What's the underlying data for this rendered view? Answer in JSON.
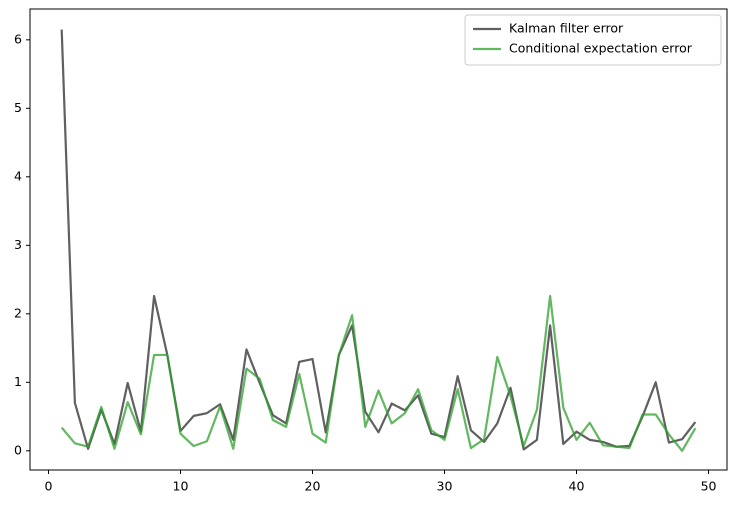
{
  "chart_data": {
    "type": "line",
    "x": [
      1,
      2,
      3,
      4,
      5,
      6,
      7,
      8,
      9,
      10,
      11,
      12,
      13,
      14,
      15,
      16,
      17,
      18,
      19,
      20,
      21,
      22,
      23,
      24,
      25,
      26,
      27,
      28,
      29,
      30,
      31,
      32,
      33,
      34,
      35,
      36,
      37,
      38,
      39,
      40,
      41,
      42,
      43,
      44,
      45,
      46,
      47,
      48,
      49
    ],
    "series": [
      {
        "name": "Kalman filter error",
        "color": "#2b2b2b",
        "values": [
          6.15,
          0.7,
          0.03,
          0.6,
          0.1,
          0.99,
          0.28,
          2.26,
          1.4,
          0.29,
          0.51,
          0.55,
          0.68,
          0.16,
          1.48,
          0.99,
          0.52,
          0.4,
          1.3,
          1.34,
          0.27,
          1.4,
          1.83,
          0.57,
          0.27,
          0.69,
          0.59,
          0.81,
          0.25,
          0.2,
          1.09,
          0.3,
          0.13,
          0.4,
          0.92,
          0.02,
          0.16,
          1.83,
          0.1,
          0.28,
          0.16,
          0.13,
          0.06,
          0.07,
          0.5,
          1.0,
          0.12,
          0.17,
          0.42
        ]
      },
      {
        "name": "Conditional expectation error",
        "color": "#2ca02c",
        "values": [
          0.34,
          0.11,
          0.06,
          0.64,
          0.03,
          0.71,
          0.24,
          1.4,
          1.4,
          0.25,
          0.07,
          0.14,
          0.65,
          0.03,
          1.2,
          1.05,
          0.45,
          0.35,
          1.12,
          0.25,
          0.12,
          1.4,
          1.98,
          0.35,
          0.88,
          0.4,
          0.55,
          0.9,
          0.3,
          0.16,
          0.9,
          0.04,
          0.17,
          1.37,
          0.8,
          0.07,
          0.6,
          2.26,
          0.63,
          0.16,
          0.41,
          0.08,
          0.06,
          0.04,
          0.53,
          0.53,
          0.24,
          0.0,
          0.33
        ]
      }
    ],
    "xlim": [
      -1.4,
      51.4
    ],
    "xticks": [
      0,
      10,
      20,
      30,
      40,
      50
    ],
    "ylim": [
      -0.28,
      6.45
    ],
    "yticks": [
      0,
      1,
      2,
      3,
      4,
      5,
      6
    ],
    "grid": false,
    "legend": "upper right"
  }
}
